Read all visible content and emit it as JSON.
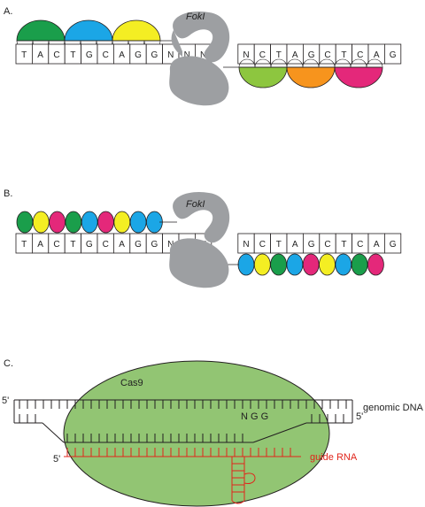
{
  "panels": [
    {
      "label": "A.",
      "enzyme_label": "FokI",
      "top_strand": [
        "T",
        "A",
        "C",
        "T",
        "G",
        "C",
        "A",
        "G",
        "G",
        "N",
        "N"
      ],
      "spacer": [
        "N"
      ],
      "bottom_strand": [
        "N",
        "C",
        "T",
        "A",
        "G",
        "C",
        "T",
        "C",
        "A",
        "G"
      ],
      "top_zinc_fingers": [
        "#1a9e4b",
        "#1ba6e6",
        "#f4ee23"
      ],
      "bottom_zinc_fingers": [
        "#8dc63f",
        "#f7941d",
        "#e4287a"
      ]
    },
    {
      "label": "B.",
      "enzyme_label": "FokI",
      "top_strand": [
        "T",
        "A",
        "C",
        "T",
        "G",
        "C",
        "A",
        "G",
        "G",
        "N",
        "N"
      ],
      "spacer": [
        "N"
      ],
      "bottom_strand": [
        "N",
        "C",
        "T",
        "A",
        "G",
        "C",
        "T",
        "C",
        "A",
        "G"
      ],
      "top_tale_repeats": [
        "#1a9e4b",
        "#f4ee23",
        "#e4287a",
        "#1a9e4b",
        "#1ba6e6",
        "#e4287a",
        "#f4ee23",
        "#1ba6e6",
        "#1ba6e6"
      ],
      "bottom_tale_repeats": [
        "#1ba6e6",
        "#f4ee23",
        "#1a9e4b",
        "#1ba6e6",
        "#e4287a",
        "#f4ee23",
        "#1ba6e6",
        "#1a9e4b",
        "#e4287a"
      ]
    },
    {
      "label": "C.",
      "protein_label": "Cas9",
      "pam_label": "N G G",
      "genomic_label": "genomic DNA",
      "guide_label": "guide RNA",
      "five_prime_left": "5'",
      "five_prime_right": "5'",
      "five_prime_guide": "5'"
    }
  ],
  "colors": {
    "fokI": "#9d9fa2",
    "cas9": "#92c573",
    "guide_rna": "#e1251b",
    "line": "#231f20"
  }
}
